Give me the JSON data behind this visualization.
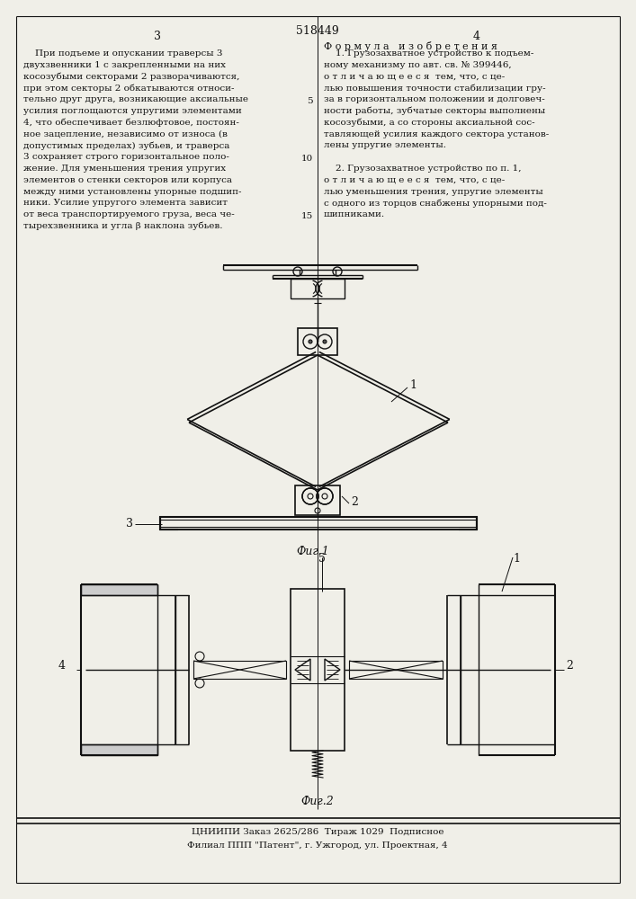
{
  "page_width": 7.07,
  "page_height": 10.0,
  "bg_color": "#f0efe8",
  "patent_number": "518449",
  "page_left_num": "3",
  "page_right_num": "4",
  "formula_title": "Ф о р м у л а   и з о б р е т е н и я",
  "left_text": [
    "    При подъеме и опускании траверсы 3",
    "двухзвенники 1 с закрепленными на них",
    "косозубыми секторами 2 разворачиваются,",
    "при этом секторы 2 обкатываются относи-",
    "тельно друг друга, возникающие аксиальные",
    "усилия поглощаются упругими элементами",
    "4, что обеспечивает безлюфтовое, постоян-",
    "ное зацепление, независимо от износа (в",
    "допустимых пределах) зубьев, и траверса",
    "3 сохраняет строго горизонтальное поло-",
    "жение. Для уменьшения трения упругих",
    "элементов о стенки секторов или корпуса",
    "между ними установлены упорные подшип-",
    "ники. Усилие упругого элемента зависит",
    "от веса транспортируемого груза, веса че-",
    "тырехзвенника и угла β наклона зубьев."
  ],
  "right_text_1": [
    "    1. Грузозахватное устройство к подъем-",
    "ному механизму по авт. св. № 399446,",
    "о т л и ч а ю щ е е с я  тем, что, с це-",
    "лью повышения точности стабилизации гру-",
    "за в горизонтальном положении и долговеч-",
    "ности работы, зубчатые секторы выполнены",
    "косозубыми, а со стороны аксиальной сос-",
    "тавляющей усилия каждого сектора установ-",
    "лены упругие элементы."
  ],
  "right_text_2": [
    "    2. Грузозахватное устройство по п. 1,",
    "о т л и ч а ю щ е е с я  тем, что, с це-",
    "лью уменьшения трения, упругие элементы",
    "с одного из торцов снабжены упорными под-",
    "шипниками."
  ],
  "fig1_label": "Фиг.1",
  "fig2_label": "Фиг.2",
  "bottom_line1": "ЦНИИПИ Заказ 2625/286  Тираж 1029  Подписное",
  "bottom_line2": "Филиал ППП \"Патент\", г. Ужгород, ул. Проектная, 4",
  "text_color": "#111111",
  "line_color": "#111111"
}
